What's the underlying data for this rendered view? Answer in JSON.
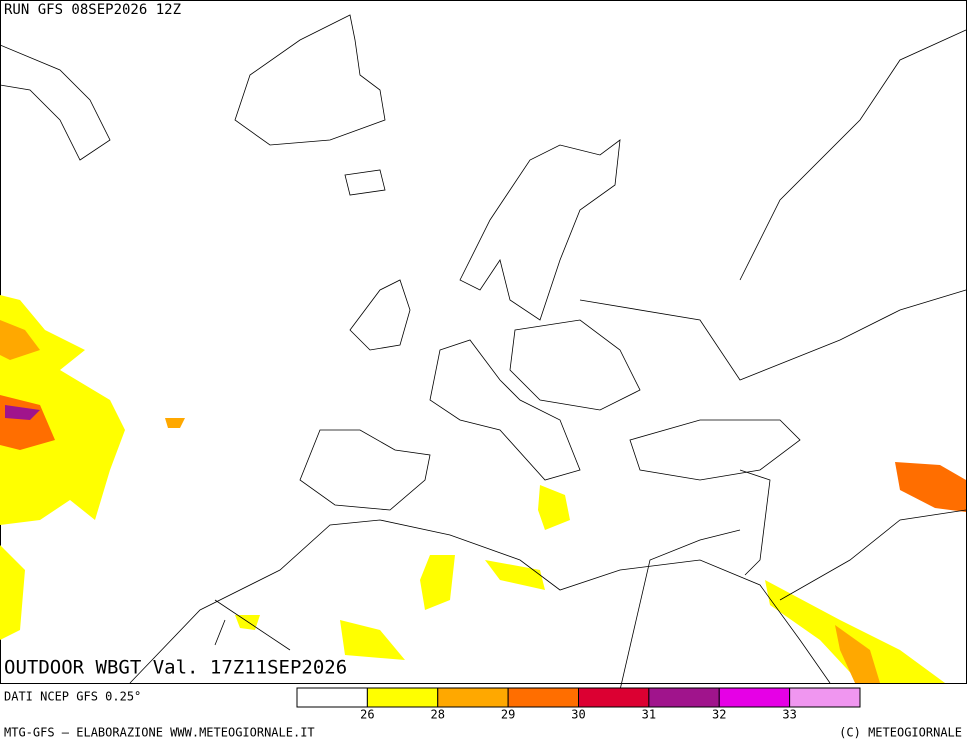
{
  "header": {
    "title": "RUN GFS 08SEP2026 12Z"
  },
  "map": {
    "label": "OUTDOOR WBGT Val. 17Z11SEP2026"
  },
  "legend": {
    "source": "DATI NCEP GFS 0.25°",
    "colors": [
      "#ffffff",
      "#ffff00",
      "#ffa800",
      "#ff6e00",
      "#dc0032",
      "#a0148c",
      "#e600e6",
      "#f096f0"
    ],
    "ticks": [
      26,
      28,
      29,
      30,
      31,
      32,
      33
    ]
  },
  "footer": {
    "credit": "MTG-GFS – ELABORAZIONE WWW.METEOGIORNALE.IT",
    "copyright": "(C) METEOGIORNALE"
  }
}
